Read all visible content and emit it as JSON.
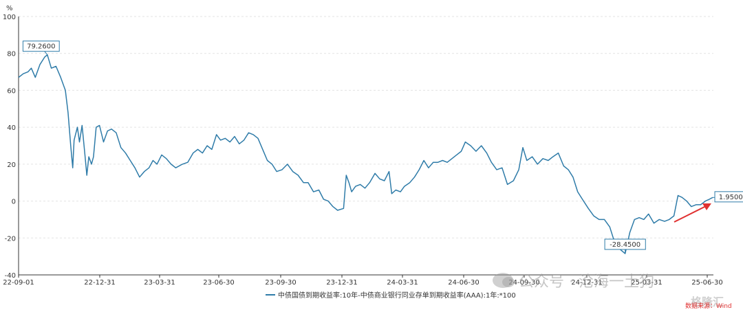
{
  "chart_data": {
    "type": "line",
    "unit_label": "%",
    "ylim": [
      -40,
      100
    ],
    "yticks": [
      -40,
      -20,
      0,
      20,
      40,
      60,
      80,
      100
    ],
    "x_tick_labels": [
      "22-09-01",
      "22-12-31",
      "23-03-31",
      "23-06-30",
      "23-09-30",
      "23-12-31",
      "24-03-31",
      "24-06-30",
      "24-09-30",
      "24-12-31",
      "25-03-31",
      "25-06-30"
    ],
    "grid": true,
    "legend_position": "bottom",
    "series": [
      {
        "name": "中债国债到期收益率:10年-中债商业银行同业存单到期收益率(AAA):1年:*100",
        "color": "#2e7ba8",
        "points": [
          [
            "2022-09-01",
            67
          ],
          [
            "2022-09-08",
            69
          ],
          [
            "2022-09-15",
            70
          ],
          [
            "2022-09-20",
            72
          ],
          [
            "2022-09-26",
            67
          ],
          [
            "2022-10-03",
            74
          ],
          [
            "2022-10-10",
            78
          ],
          [
            "2022-10-14",
            79.26
          ],
          [
            "2022-10-20",
            72
          ],
          [
            "2022-10-27",
            73
          ],
          [
            "2022-11-03",
            67
          ],
          [
            "2022-11-10",
            60
          ],
          [
            "2022-11-14",
            48
          ],
          [
            "2022-11-18",
            30
          ],
          [
            "2022-11-21",
            18
          ],
          [
            "2022-11-23",
            33
          ],
          [
            "2022-11-28",
            40
          ],
          [
            "2022-12-01",
            32
          ],
          [
            "2022-12-05",
            41
          ],
          [
            "2022-12-09",
            26
          ],
          [
            "2022-12-12",
            14
          ],
          [
            "2022-12-15",
            24
          ],
          [
            "2022-12-19",
            20
          ],
          [
            "2022-12-22",
            24
          ],
          [
            "2022-12-26",
            40
          ],
          [
            "2022-12-31",
            41
          ],
          [
            "2023-01-06",
            32
          ],
          [
            "2023-01-12",
            38
          ],
          [
            "2023-01-18",
            39
          ],
          [
            "2023-01-25",
            37
          ],
          [
            "2023-02-01",
            29
          ],
          [
            "2023-02-08",
            26
          ],
          [
            "2023-02-15",
            22
          ],
          [
            "2023-02-22",
            18
          ],
          [
            "2023-03-01",
            13
          ],
          [
            "2023-03-08",
            16
          ],
          [
            "2023-03-15",
            18
          ],
          [
            "2023-03-21",
            22
          ],
          [
            "2023-03-27",
            20
          ],
          [
            "2023-04-03",
            25
          ],
          [
            "2023-04-10",
            23
          ],
          [
            "2023-04-17",
            20
          ],
          [
            "2023-04-24",
            18
          ],
          [
            "2023-05-04",
            20
          ],
          [
            "2023-05-12",
            21
          ],
          [
            "2023-05-20",
            26
          ],
          [
            "2023-05-27",
            28
          ],
          [
            "2023-06-03",
            26
          ],
          [
            "2023-06-10",
            30
          ],
          [
            "2023-06-17",
            28
          ],
          [
            "2023-06-24",
            36
          ],
          [
            "2023-06-30",
            33
          ],
          [
            "2023-07-07",
            34
          ],
          [
            "2023-07-14",
            32
          ],
          [
            "2023-07-21",
            35
          ],
          [
            "2023-07-28",
            31
          ],
          [
            "2023-08-04",
            33
          ],
          [
            "2023-08-11",
            37
          ],
          [
            "2023-08-18",
            36
          ],
          [
            "2023-08-25",
            34
          ],
          [
            "2023-09-01",
            28
          ],
          [
            "2023-09-08",
            22
          ],
          [
            "2023-09-15",
            20
          ],
          [
            "2023-09-22",
            16
          ],
          [
            "2023-09-30",
            17
          ],
          [
            "2023-10-08",
            20
          ],
          [
            "2023-10-16",
            16
          ],
          [
            "2023-10-24",
            14
          ],
          [
            "2023-11-01",
            10
          ],
          [
            "2023-11-08",
            10
          ],
          [
            "2023-11-16",
            5
          ],
          [
            "2023-11-24",
            6
          ],
          [
            "2023-12-01",
            1
          ],
          [
            "2023-12-08",
            0
          ],
          [
            "2023-12-15",
            -3
          ],
          [
            "2023-12-22",
            -5
          ],
          [
            "2023-12-31",
            -4
          ],
          [
            "2024-01-04",
            14
          ],
          [
            "2024-01-08",
            10
          ],
          [
            "2024-01-12",
            5
          ],
          [
            "2024-01-18",
            8
          ],
          [
            "2024-01-25",
            9
          ],
          [
            "2024-02-01",
            7
          ],
          [
            "2024-02-08",
            10
          ],
          [
            "2024-02-16",
            15
          ],
          [
            "2024-02-23",
            12
          ],
          [
            "2024-03-01",
            11
          ],
          [
            "2024-03-08",
            16
          ],
          [
            "2024-03-12",
            4
          ],
          [
            "2024-03-18",
            6
          ],
          [
            "2024-03-25",
            5
          ],
          [
            "2024-03-31",
            8
          ],
          [
            "2024-04-08",
            10
          ],
          [
            "2024-04-15",
            13
          ],
          [
            "2024-04-22",
            17
          ],
          [
            "2024-04-29",
            22
          ],
          [
            "2024-05-06",
            18
          ],
          [
            "2024-05-13",
            21
          ],
          [
            "2024-05-20",
            21
          ],
          [
            "2024-05-27",
            22
          ],
          [
            "2024-06-03",
            21
          ],
          [
            "2024-06-10",
            23
          ],
          [
            "2024-06-17",
            25
          ],
          [
            "2024-06-24",
            27
          ],
          [
            "2024-06-30",
            32
          ],
          [
            "2024-07-08",
            30
          ],
          [
            "2024-07-16",
            27
          ],
          [
            "2024-07-24",
            30
          ],
          [
            "2024-08-01",
            26
          ],
          [
            "2024-08-08",
            21
          ],
          [
            "2024-08-16",
            17
          ],
          [
            "2024-08-24",
            18
          ],
          [
            "2024-09-01",
            9
          ],
          [
            "2024-09-10",
            11
          ],
          [
            "2024-09-18",
            17
          ],
          [
            "2024-09-24",
            29
          ],
          [
            "2024-09-30",
            22
          ],
          [
            "2024-10-08",
            24
          ],
          [
            "2024-10-16",
            20
          ],
          [
            "2024-10-24",
            23
          ],
          [
            "2024-11-01",
            22
          ],
          [
            "2024-11-08",
            24
          ],
          [
            "2024-11-16",
            26
          ],
          [
            "2024-11-24",
            19
          ],
          [
            "2024-12-01",
            17
          ],
          [
            "2024-12-08",
            13
          ],
          [
            "2024-12-15",
            5
          ],
          [
            "2024-12-22",
            1
          ],
          [
            "2024-12-31",
            -4
          ],
          [
            "2025-01-08",
            -8
          ],
          [
            "2025-01-16",
            -10
          ],
          [
            "2025-01-24",
            -10
          ],
          [
            "2025-02-01",
            -14
          ],
          [
            "2025-02-08",
            -22
          ],
          [
            "2025-02-16",
            -26
          ],
          [
            "2025-02-24",
            -28.45
          ],
          [
            "2025-03-03",
            -17
          ],
          [
            "2025-03-10",
            -10
          ],
          [
            "2025-03-17",
            -9
          ],
          [
            "2025-03-24",
            -10
          ],
          [
            "2025-03-31",
            -7
          ],
          [
            "2025-04-08",
            -12
          ],
          [
            "2025-04-16",
            -10
          ],
          [
            "2025-04-24",
            -11
          ],
          [
            "2025-05-01",
            -10
          ],
          [
            "2025-05-08",
            -8
          ],
          [
            "2025-05-14",
            3
          ],
          [
            "2025-05-20",
            2
          ],
          [
            "2025-05-27",
            0
          ],
          [
            "2025-06-03",
            -3
          ],
          [
            "2025-06-10",
            -2
          ],
          [
            "2025-06-17",
            -2
          ],
          [
            "2025-06-24",
            0
          ],
          [
            "2025-06-30",
            1
          ],
          [
            "2025-07-05",
            1.95
          ]
        ]
      }
    ],
    "annotations": [
      {
        "label": "79.2600",
        "x": "2022-10-14",
        "y": 79.26
      },
      {
        "label": "-28.4500",
        "x": "2025-02-24",
        "y": -28.45
      },
      {
        "label": "1.9500",
        "x": "2025-07-05",
        "y": 1.95
      }
    ]
  },
  "watermark_text": "公众号 · 沧海一土狗",
  "source_text": "数据来源：Wind",
  "brand_text": "格隆汇"
}
